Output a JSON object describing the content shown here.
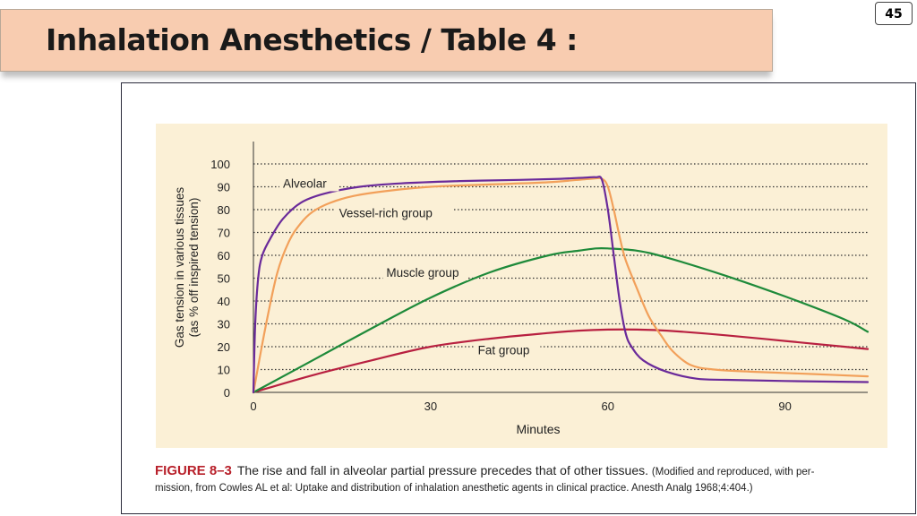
{
  "page": {
    "number": "45",
    "title": "Inhalation Anesthetics / Table 4 :"
  },
  "caption": {
    "figure_label": "FIGURE 8–3",
    "text": "The rise and fall in alveolar partial pressure precedes that of other tissues.",
    "source_part1": "(Modified and reproduced, with per-",
    "source_part2": "mission, from Cowles AL et al: Uptake and distribution of inhalation anesthetic agents in clinical practice. Anesth Analg 1968;4:404.)"
  },
  "colors": {
    "panel": "#fbf0d6",
    "alveolar": "#6a2a9a",
    "vessel": "#f2a05a",
    "muscle": "#1e8a3a",
    "fat": "#b82040",
    "caption_label": "#b8202a"
  },
  "chart_data": {
    "type": "line",
    "xlabel": "Minutes",
    "ylabel": "Gas tension in various tissues (as % off inspired tension)",
    "xlim": [
      0,
      104
    ],
    "ylim": [
      0,
      100
    ],
    "xticks": [
      0,
      30,
      60,
      90
    ],
    "yticks": [
      0,
      10,
      20,
      30,
      40,
      50,
      60,
      70,
      80,
      90,
      100
    ],
    "grid": "horizontal dotted",
    "series": [
      {
        "name": "Alveolar",
        "color": "#6a2a9a",
        "label_at": [
          5,
          90
        ],
        "x": [
          0,
          0.3,
          0.8,
          1.5,
          3,
          5,
          8,
          12,
          18,
          25,
          35,
          45,
          52,
          56,
          58,
          59,
          60,
          61,
          62,
          63,
          64,
          66,
          70,
          75,
          80,
          90,
          104
        ],
        "y": [
          0,
          30,
          50,
          60,
          68,
          76,
          83,
          87,
          90,
          91.5,
          92.5,
          93,
          93.5,
          94,
          94.2,
          93,
          80,
          60,
          40,
          26,
          20,
          14,
          9,
          6,
          5.5,
          5,
          4.5
        ]
      },
      {
        "name": "Vessel-rich group",
        "color": "#f2a05a",
        "label_at": [
          14.5,
          77
        ],
        "x": [
          0,
          2,
          4,
          6,
          8,
          10,
          13,
          17,
          22,
          30,
          40,
          50,
          57,
          59,
          60,
          61,
          62,
          63,
          65,
          67,
          69,
          71,
          74,
          78,
          85,
          95,
          104
        ],
        "y": [
          0,
          28,
          52,
          66,
          74,
          79,
          83,
          86,
          88,
          90,
          91,
          92,
          93.5,
          93.5,
          90,
          80,
          68,
          58,
          45,
          33,
          25,
          18,
          12,
          10,
          9,
          8,
          7
        ]
      },
      {
        "name": "Muscle group",
        "color": "#1e8a3a",
        "label_at": [
          22.5,
          51
        ],
        "x": [
          0,
          10,
          20,
          30,
          40,
          50,
          55,
          58,
          60,
          65,
          70,
          80,
          90,
          100,
          104
        ],
        "y": [
          0,
          14,
          28,
          41.5,
          52.5,
          60,
          62,
          63,
          63,
          62,
          59,
          51,
          42,
          32,
          26.5
        ]
      },
      {
        "name": "Fat group",
        "color": "#b82040",
        "label_at": [
          38,
          17
        ],
        "x": [
          0,
          10,
          20,
          30,
          40,
          50,
          55,
          60,
          65,
          70,
          80,
          90,
          100,
          104
        ],
        "y": [
          0,
          7.5,
          14,
          20,
          23.5,
          26,
          27,
          27.5,
          27.5,
          27,
          25,
          22.5,
          20,
          19
        ]
      }
    ]
  }
}
